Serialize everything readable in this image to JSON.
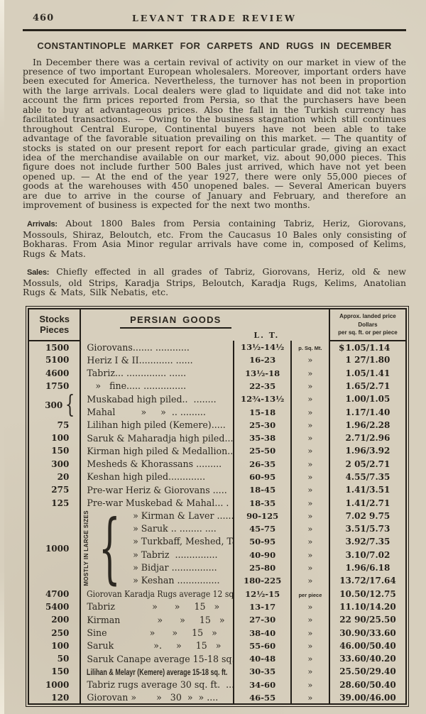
{
  "page": {
    "number": "460",
    "journal": "LEVANT TRADE REVIEW",
    "article_title": "CONSTANTINOPLE MARKET FOR CARPETS AND RUGS IN DECEMBER"
  },
  "article": {
    "intro": "In December there was a certain revival of activity on our market in view of the presence of two important European wholesalers. Moreover, important orders have been executed for America.  Nevertheless, the turnover has not been in proportion with the large arrivals.  Local dealers were glad to liquidate and did not take into account the firm prices reported from Persia, so that the purchasers have been able to buy at advantageous prices.  Also the fall in the Turkish currency has facilitated transactions. — Owing to the business stagnation which still continues throughout Central Europe, Continental buyers have not been able to take advantage of the favorable situation prevailing on this market. — The quantity of stocks is stated on our present report for each particular grade, giving an exact idea of the merchandise available on our market, viz. about 90,000 pieces.  This figure does not include further 500 Bales just arrived, which have not yet been opened up. — At the end of the year 1927, there were only 55,000 pieces of goods at the warehouses with 450 unopened bales. — Several American buyers are due to arrive in the course of January and February, and therefore an improvement of business is expected for the next two months.",
    "arrivals_label": "Arrivals:",
    "arrivals": " About 1800 Bales from Persia containing Tabriz, Heriz, Giorovans, Mossouls, Shiraz, Beloutch, etc.  From the Caucasus 10 Bales only consisting of Bokharas.  From Asia Minor regular arrivals have come in, composed of Kelims, Rugs & Mats.",
    "sales_label": "Sales:",
    "sales": " Chiefly effected in all grades of Tabriz, Giorovans, Heriz, old & new Mossuls, old Strips, Karadja Strips, Beloutch, Karadja Rugs, Kelims, Anatolian Rugs & Mats, Silk Nebatis, etc."
  },
  "table": {
    "headers": {
      "stocks_line1": "Stocks",
      "stocks_line2": "Pieces",
      "goods": "PERSIAN GOODS",
      "lt": "L. T.",
      "approx_line1": "Approx. landed price Dollars",
      "approx_line2": "per sq. ft. or per piece"
    },
    "group_small": {
      "stocks": "300",
      "brace": "{"
    },
    "group_large": {
      "stocks": "1000",
      "brace": "{",
      "label": "MOSTLY IN LARGE SIZES"
    },
    "dollar_sign": "$",
    "rows": [
      {
        "stocks": "1500",
        "name": "Giorovans....... ............",
        "lt": "13½-14½",
        "unit": "p. Sq. Mt.",
        "dollars": "1.05/1.14"
      },
      {
        "stocks": "5100",
        "name": "Heriz I & II............ ......",
        "lt": "16-23",
        "unit": "»",
        "dollars": "1 27/1.80"
      },
      {
        "stocks": "4600",
        "name": "Tabriz... .............. ......",
        "lt": "13½-18",
        "unit": "»",
        "dollars": "1.05/1.41"
      },
      {
        "stocks": "1750",
        "name": "   »   fine..... ...............",
        "lt": "22-35",
        "unit": "»",
        "dollars": "1.65/2.71"
      },
      {
        "stocks": "300",
        "name": "Muskabad high piled..  ........",
        "lt": "12¾-13½",
        "unit": "»",
        "dollars": "1.00/1.05"
      },
      {
        "stocks": "",
        "name": "Mahal         »     »  .. .........",
        "lt": "15-18",
        "unit": "»",
        "dollars": "1.17/1.40"
      },
      {
        "stocks": "75",
        "name": "Lilihan high piled (Kemere).....",
        "lt": "25-30",
        "unit": "»",
        "dollars": "1.96/2.28"
      },
      {
        "stocks": "100",
        "name": "Saruk & Maharadja high piled...",
        "lt": "35-38",
        "unit": "»",
        "dollars": "2.71/2.96"
      },
      {
        "stocks": "150",
        "name": "Kirman high piled & Medallion..",
        "lt": "25-50",
        "unit": "»",
        "dollars": "1.96/3.92"
      },
      {
        "stocks": "300",
        "name": "Mesheds & Khorassans .........",
        "lt": "26-35",
        "unit": "»",
        "dollars": "2 05/2.71"
      },
      {
        "stocks": "20",
        "name": "Keshan high piled.............",
        "lt": "60-95",
        "unit": "»",
        "dollars": "4.55/7.35"
      },
      {
        "stocks": "275",
        "name": "Pre-war Heriz & Giorovans .....",
        "lt": "18-45",
        "unit": "»",
        "dollars": "1.41/3.51"
      },
      {
        "stocks": "125",
        "name": "Pre-war Muskebad & Mahal... .",
        "lt": "18-35",
        "unit": "»",
        "dollars": "1.41/2.71"
      },
      {
        "stocks": "1000",
        "name": "» Kirman & Laver .......",
        "lt": "90-125",
        "unit": "»",
        "dollars": "7.02 9.75"
      },
      {
        "stocks": "",
        "name": "» Saruk .. ........ ....",
        "lt": "45-75",
        "unit": "»",
        "dollars": "3.51/5.73"
      },
      {
        "stocks": "",
        "name": "» Turkbaff, Meshed, Taïbaff",
        "lt": "50-95",
        "unit": "»",
        "dollars": "3.92/7.35"
      },
      {
        "stocks": "",
        "name": "» Tabriz  ...............",
        "lt": "40-90",
        "unit": "»",
        "dollars": "3.10/7.02"
      },
      {
        "stocks": "",
        "name": "» Bidjar ................",
        "lt": "25-80",
        "unit": "»",
        "dollars": "1.96/6.18"
      },
      {
        "stocks": "",
        "name": "» Keshan ...............",
        "lt": "180-225",
        "unit": "»",
        "dollars": "13.72/17.64"
      },
      {
        "stocks": "4700",
        "name": "Giorovan Karadja Rugs average 12 sq ft.",
        "lt": "12½-15",
        "unit": "per piece",
        "dollars": "10.50/12.75"
      },
      {
        "stocks": "5400",
        "name": "Tabriz             »      »     15   »",
        "lt": "13-17",
        "unit": "»",
        "dollars": "11.10/14.20"
      },
      {
        "stocks": "200",
        "name": "Kirman             »      »     15   »",
        "lt": "27-30",
        "unit": "»",
        "dollars": "22 90/25.50"
      },
      {
        "stocks": "250",
        "name": "Sine               »      »     15   »",
        "lt": "38-40",
        "unit": "»",
        "dollars": "30.90/33.60"
      },
      {
        "stocks": "100",
        "name": "Saruk              ».     »     15   »",
        "lt": "55-60",
        "unit": "»",
        "dollars": "46.00/50.40"
      },
      {
        "stocks": "50",
        "name": "Saruk Canape average 15-18 sq. ft.",
        "lt": "40-48",
        "unit": "»",
        "dollars": "33.60/40.20"
      },
      {
        "stocks": "150",
        "name": "Lilihan & Melayr (Kemere) average 15-18 sq. ft.",
        "lt": "30-35",
        "unit": "»",
        "dollars": "25.50/29.40"
      },
      {
        "stocks": "1000",
        "name": "Tabriz rugs average 30 sq. ft.  ...",
        "lt": "34-60",
        "unit": "»",
        "dollars": "28.60/50.40"
      },
      {
        "stocks": "120",
        "name": "Giorovan »       »   30  »  » ....",
        "lt": "46-55",
        "unit": "»",
        "dollars": "39.00/46.00"
      }
    ]
  }
}
